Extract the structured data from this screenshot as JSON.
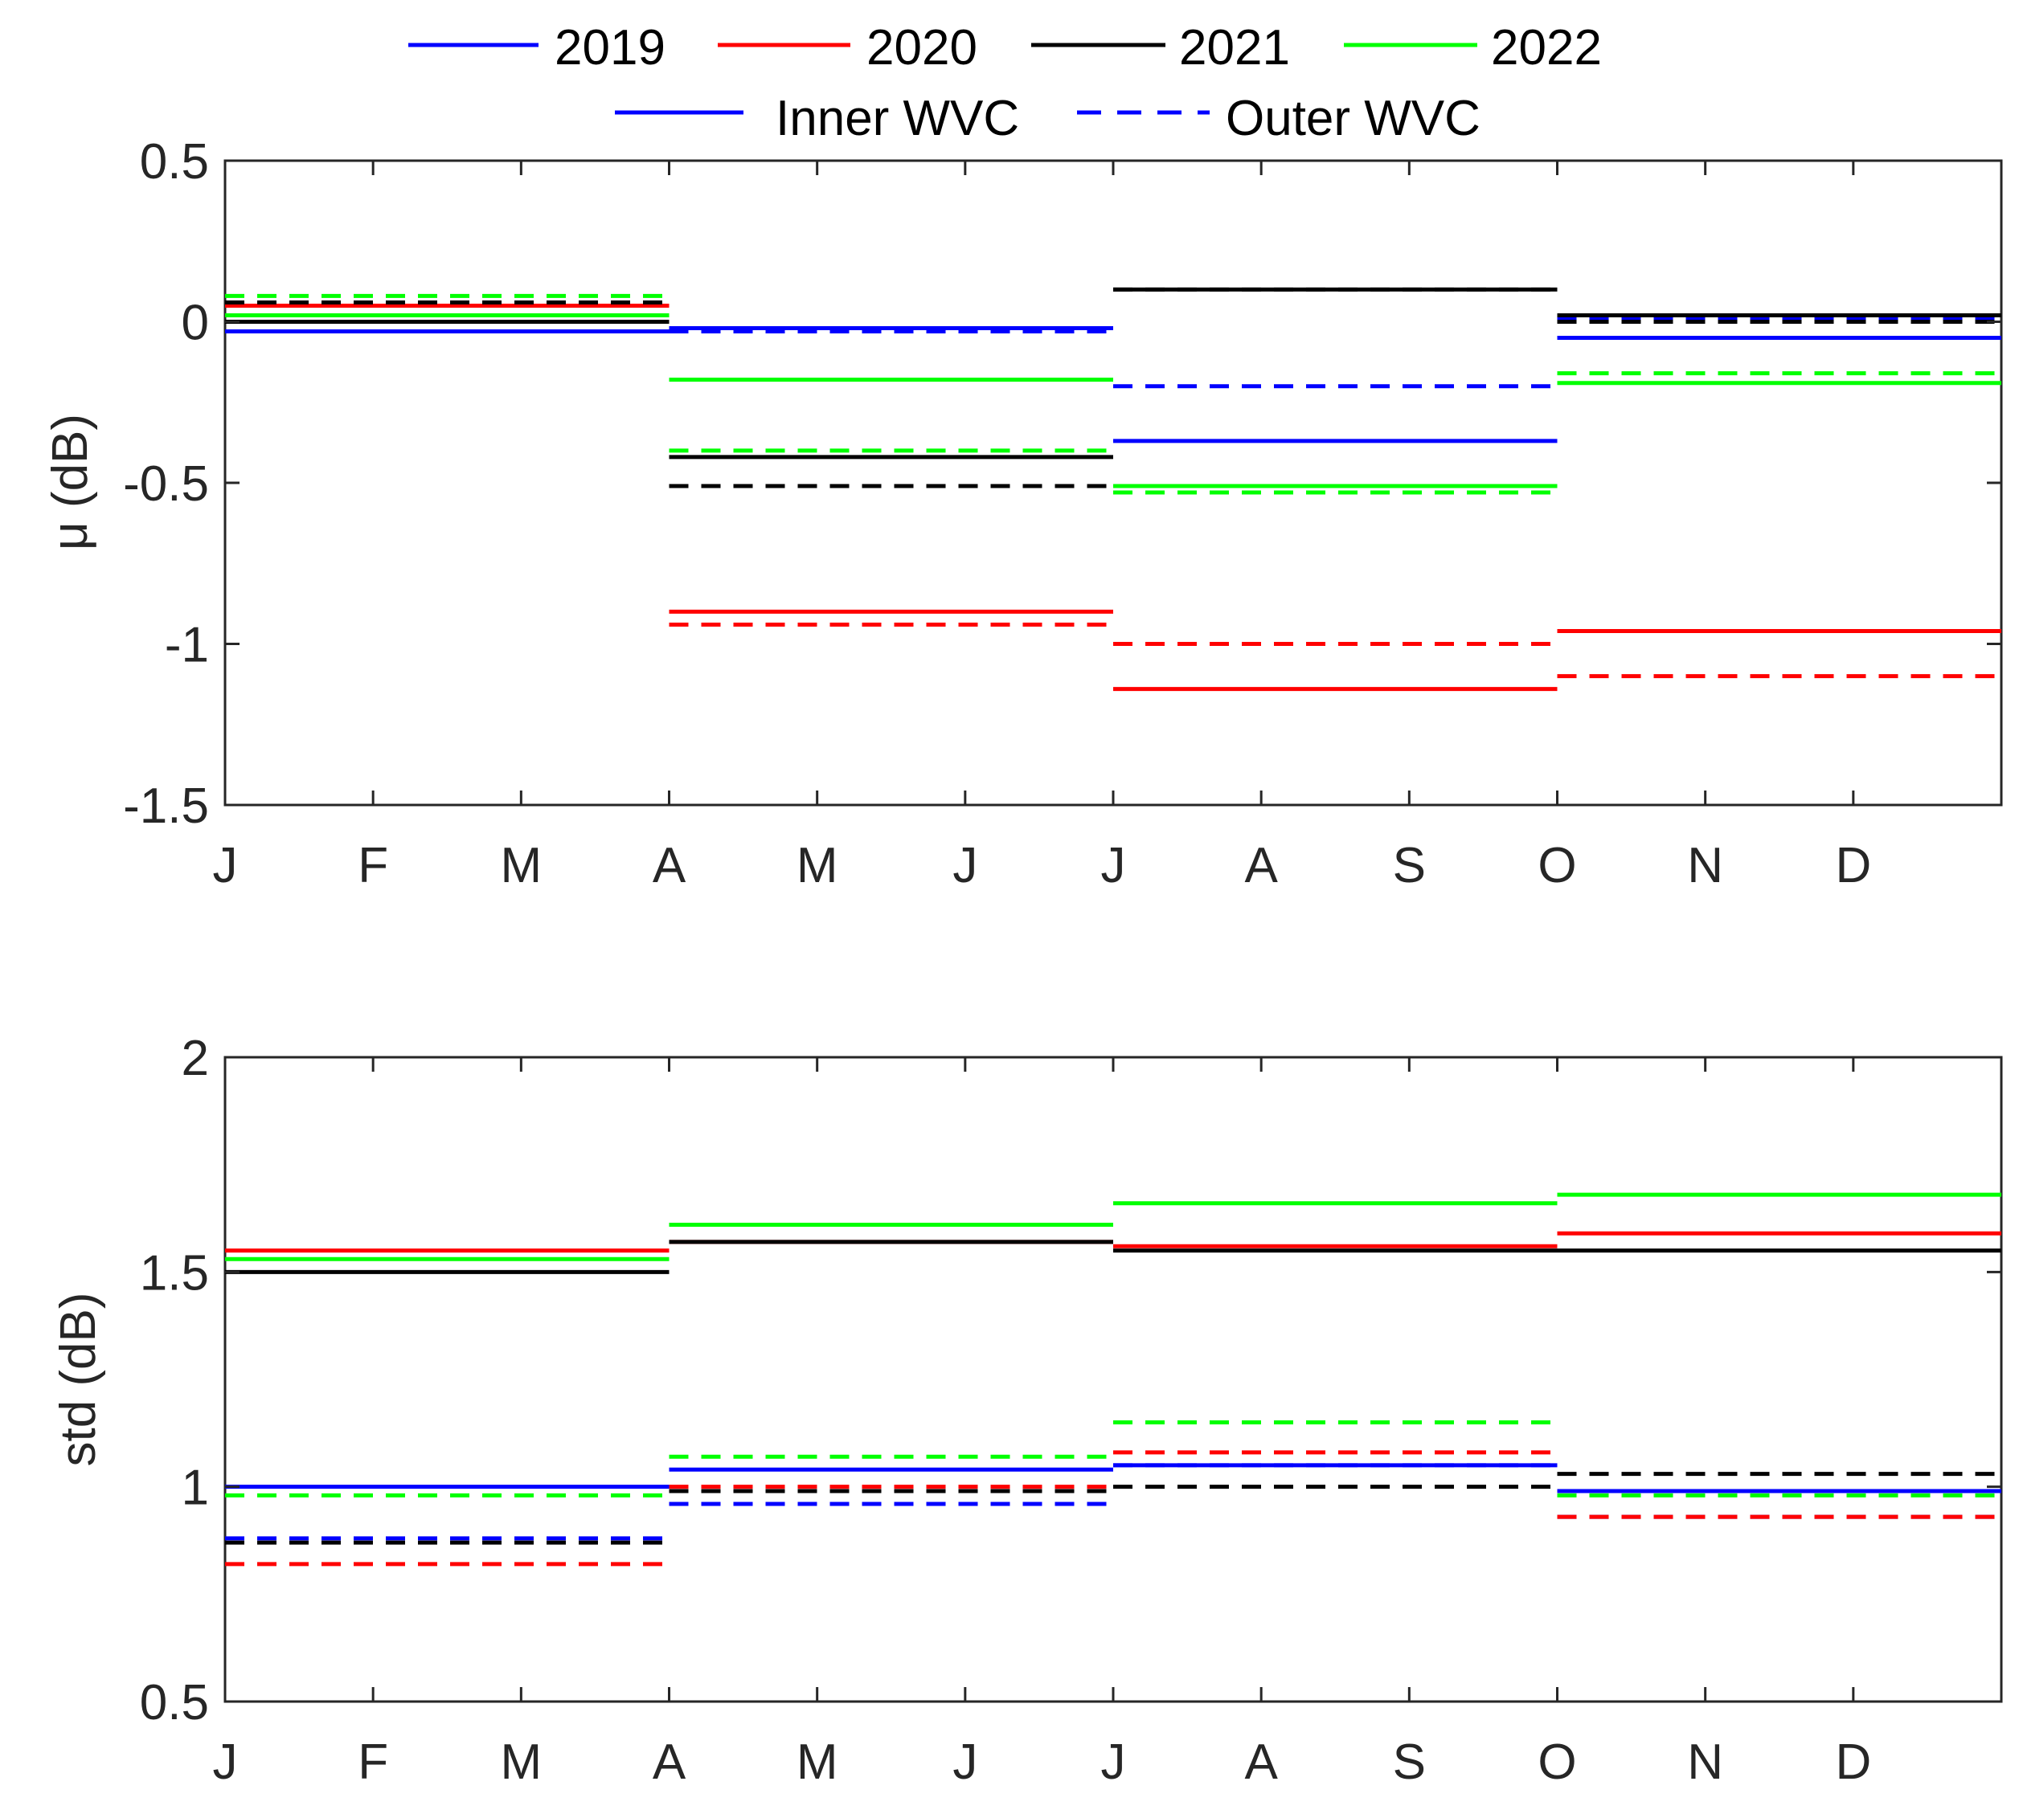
{
  "legend": {
    "years": [
      {
        "label": "2019",
        "color": "#0000ff"
      },
      {
        "label": "2020",
        "color": "#ff0000"
      },
      {
        "label": "2021",
        "color": "#000000"
      },
      {
        "label": "2022",
        "color": "#00ff00"
      }
    ],
    "styles": [
      {
        "label": "Inner WVC",
        "dash": "solid",
        "color": "#0000ff"
      },
      {
        "label": "Outer WVC",
        "dash": "dashed",
        "color": "#0000ff"
      }
    ]
  },
  "chart_data": [
    {
      "type": "line",
      "title": "",
      "ylabel": "μ (dB)",
      "xlabel": "",
      "ylim": [
        -1.5,
        0.5
      ],
      "yticks": [
        "0.5",
        "0",
        "-0.5",
        "-1",
        "-1.5"
      ],
      "ytick_values": [
        0.5,
        0,
        -0.5,
        -1,
        -1.5
      ],
      "xticks": [
        "J",
        "F",
        "M",
        "A",
        "M",
        "J",
        "J",
        "A",
        "S",
        "O",
        "N",
        "D"
      ],
      "xlim": [
        0,
        12
      ],
      "periods": [
        [
          0,
          3
        ],
        [
          3,
          6
        ],
        [
          6,
          9
        ],
        [
          9,
          12
        ]
      ],
      "series": [
        {
          "name": "2019 Inner",
          "year": "2019",
          "style": "solid",
          "values": [
            -0.03,
            -0.02,
            -0.37,
            -0.05
          ]
        },
        {
          "name": "2019 Outer",
          "year": "2019",
          "style": "dashed",
          "values": [
            0.05,
            -0.03,
            -0.2,
            0.01
          ]
        },
        {
          "name": "2020 Inner",
          "year": "2020",
          "style": "solid",
          "values": [
            0.05,
            -0.9,
            -1.14,
            -0.96
          ]
        },
        {
          "name": "2020 Outer",
          "year": "2020",
          "style": "dashed",
          "values": [
            0.06,
            -0.94,
            -1.0,
            -1.1
          ]
        },
        {
          "name": "2021 Inner",
          "year": "2021",
          "style": "solid",
          "values": [
            0.0,
            -0.42,
            0.1,
            0.02
          ]
        },
        {
          "name": "2021 Outer",
          "year": "2021",
          "style": "dashed",
          "values": [
            0.06,
            -0.51,
            0.1,
            0.0
          ]
        },
        {
          "name": "2022 Inner",
          "year": "2022",
          "style": "solid",
          "values": [
            0.02,
            -0.18,
            -0.51,
            -0.19
          ]
        },
        {
          "name": "2022 Outer",
          "year": "2022",
          "style": "dashed",
          "values": [
            0.08,
            -0.4,
            -0.53,
            -0.16
          ]
        }
      ]
    },
    {
      "type": "line",
      "title": "",
      "ylabel": "std (dB)",
      "xlabel": "",
      "ylim": [
        0.5,
        2
      ],
      "yticks": [
        "2",
        "1.5",
        "1",
        "0.5"
      ],
      "ytick_values": [
        2,
        1.5,
        1,
        0.5
      ],
      "xticks": [
        "J",
        "F",
        "M",
        "A",
        "M",
        "J",
        "J",
        "A",
        "S",
        "O",
        "N",
        "D"
      ],
      "xlim": [
        0,
        12
      ],
      "periods": [
        [
          0,
          3
        ],
        [
          3,
          6
        ],
        [
          6,
          9
        ],
        [
          9,
          12
        ]
      ],
      "series": [
        {
          "name": "2019 Inner",
          "year": "2019",
          "style": "solid",
          "values": [
            1.0,
            1.04,
            1.05,
            0.99
          ]
        },
        {
          "name": "2019 Outer",
          "year": "2019",
          "style": "dashed",
          "values": [
            0.88,
            0.96,
            1.05,
            0.93
          ]
        },
        {
          "name": "2020 Inner",
          "year": "2020",
          "style": "solid",
          "values": [
            1.55,
            1.57,
            1.56,
            1.59
          ]
        },
        {
          "name": "2020 Outer",
          "year": "2020",
          "style": "dashed",
          "values": [
            0.82,
            1.0,
            1.08,
            0.93
          ]
        },
        {
          "name": "2021 Inner",
          "year": "2021",
          "style": "solid",
          "values": [
            1.5,
            1.57,
            1.55,
            1.55
          ]
        },
        {
          "name": "2021 Outer",
          "year": "2021",
          "style": "dashed",
          "values": [
            0.87,
            0.99,
            1.0,
            1.03
          ]
        },
        {
          "name": "2022 Inner",
          "year": "2022",
          "style": "solid",
          "values": [
            1.53,
            1.61,
            1.66,
            1.68
          ]
        },
        {
          "name": "2022 Outer",
          "year": "2022",
          "style": "dashed",
          "values": [
            0.98,
            1.07,
            1.15,
            0.98
          ]
        }
      ]
    }
  ]
}
